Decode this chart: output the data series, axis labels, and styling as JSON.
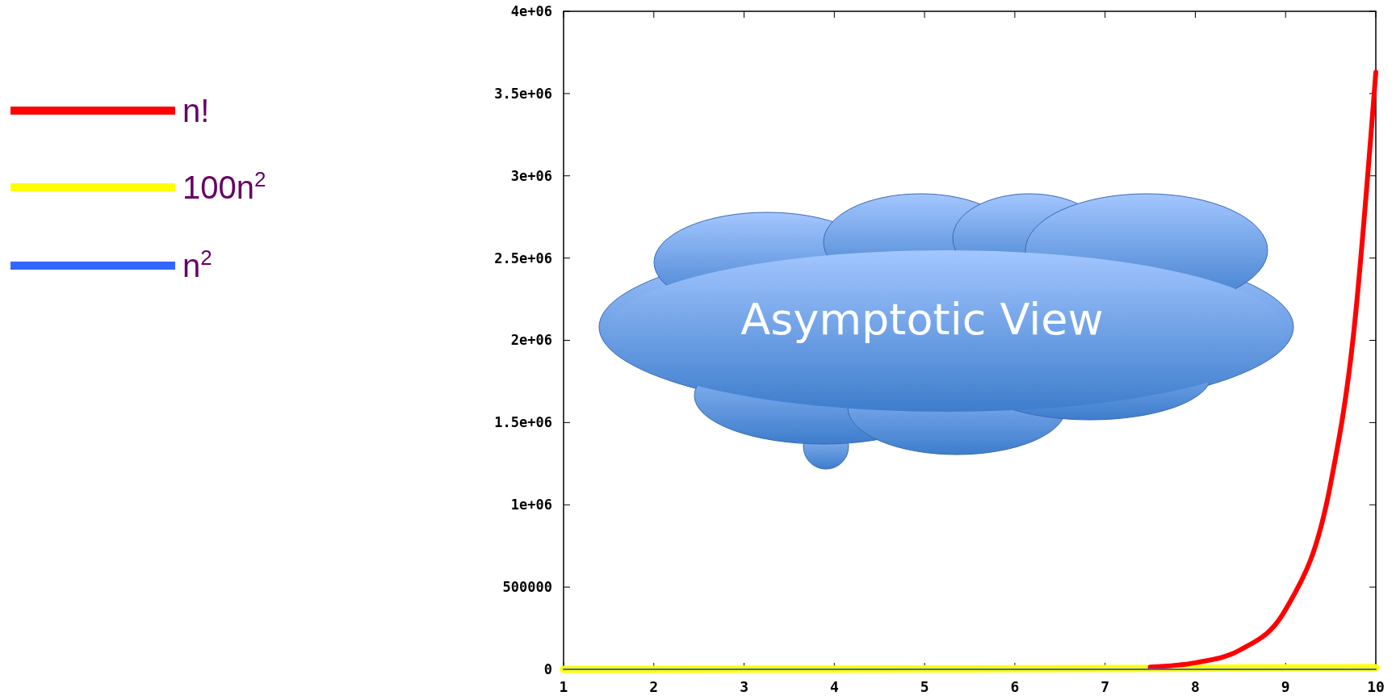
{
  "chart_data": {
    "type": "line",
    "annotations": [
      "Asymptotic View"
    ],
    "xlim": [
      1,
      10
    ],
    "xticks": [
      1,
      2,
      3,
      4,
      5,
      6,
      7,
      8,
      9,
      10
    ],
    "ylim": [
      0,
      4000000
    ],
    "yticks": [
      0,
      500000,
      {
        "value": 1000000,
        "label": "1e+06"
      },
      {
        "value": 1500000,
        "label": "1.5e+06"
      },
      {
        "value": 2000000,
        "label": "2e+06"
      },
      {
        "value": 2500000,
        "label": "2.5e+06"
      },
      {
        "value": 3000000,
        "label": "3e+06"
      },
      {
        "value": 3500000,
        "label": "3.5e+06"
      },
      {
        "value": 4000000,
        "label": "4e+06"
      }
    ],
    "grid": false,
    "legend": "left",
    "marker": "none",
    "line_style": "solid",
    "series": [
      {
        "name": "n!",
        "color": "#ff0000",
        "x": [
          7.5,
          8,
          8.5,
          9,
          9.5,
          9.75,
          10
        ],
        "values": [
          14000,
          40000,
          119000,
          363000,
          1130000,
          2020000,
          3630000
        ]
      },
      {
        "name": "100n$^{2}$",
        "color": "#ffff00",
        "x": [
          1,
          2,
          3,
          4,
          5,
          6,
          7,
          8,
          9,
          10
        ],
        "values": [
          100,
          400,
          900,
          1600,
          2500,
          3600,
          4900,
          6400,
          8100,
          10000
        ]
      },
      {
        "name": "n$^{2}$",
        "color": "#3366ff",
        "x": [
          1,
          2,
          3,
          4,
          5,
          6,
          7,
          8,
          9,
          10
        ],
        "values": [
          1,
          4,
          9,
          16,
          25,
          36,
          49,
          64,
          81,
          100
        ]
      }
    ]
  }
}
